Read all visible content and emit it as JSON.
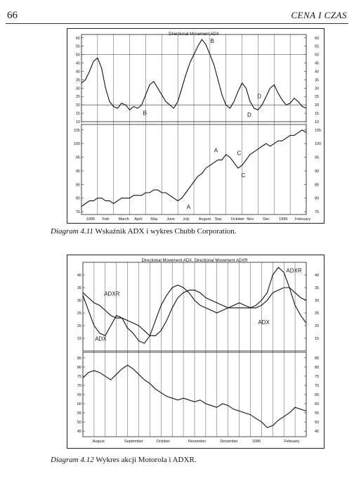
{
  "page": {
    "number": "66",
    "running_head": "CENA I CZAS"
  },
  "figures": [
    {
      "caption_number": "Diagram 4.11",
      "caption_text": "Wskaźnik ADX i wykres Chubb Corporation.",
      "chart_title": "Directional Movement ADX",
      "chart_data": {
        "type": "line",
        "panels": [
          {
            "name": "",
            "y_ticks_left": [
              "60",
              "55",
              "50",
              "45",
              "40",
              "35",
              "30",
              "25",
              "20",
              "15",
              "10"
            ],
            "y_ticks_right": [
              "60",
              "55",
              "50",
              "45",
              "40",
              "35",
              "30",
              "25",
              "20",
              "15",
              "10"
            ],
            "ylim": [
              10,
              62
            ],
            "reference_lines": [
              50,
              20
            ],
            "series": [
              {
                "name": "ADX",
                "values": [
                  33,
                  35,
                  40,
                  46,
                  48,
                  42,
                  30,
                  22,
                  19,
                  18,
                  21,
                  20,
                  17,
                  19,
                  18,
                  20,
                  26,
                  32,
                  34,
                  30,
                  26,
                  22,
                  20,
                  18,
                  22,
                  30,
                  38,
                  45,
                  50,
                  55,
                  59,
                  56,
                  50,
                  44,
                  35,
                  26,
                  20,
                  18,
                  22,
                  28,
                  33,
                  30,
                  22,
                  18,
                  17,
                  20,
                  25,
                  30,
                  32,
                  27,
                  23,
                  20,
                  21,
                  24,
                  22,
                  19,
                  18
                ]
              }
            ],
            "annotations": [
              {
                "text": "B",
                "x": 15.8,
                "y": 14
              },
              {
                "text": "B",
                "x": 32.6,
                "y": 57
              },
              {
                "text": "D",
                "x": 41.8,
                "y": 13
              },
              {
                "text": "D",
                "x": 44.3,
                "y": 24
              }
            ]
          },
          {
            "name": "",
            "y_ticks_left": [
              "105",
              "100",
              "95",
              "90",
              "85",
              "80",
              "75"
            ],
            "y_ticks_right": [
              "105",
              "100",
              "95",
              "90",
              "85",
              "80",
              "75"
            ],
            "ylim": [
              74,
              107
            ],
            "series": [
              {
                "name": "Chubb",
                "values": [
                  77,
                  78,
                  79,
                  79,
                  80,
                  80,
                  79,
                  79,
                  78,
                  79,
                  80,
                  80,
                  80,
                  81,
                  81,
                  81,
                  82,
                  82,
                  83,
                  83,
                  82,
                  82,
                  81,
                  80,
                  79,
                  80,
                  82,
                  84,
                  86,
                  88,
                  89,
                  91,
                  92,
                  93,
                  94,
                  94,
                  96,
                  95,
                  93,
                  91,
                  92,
                  94,
                  96,
                  97,
                  98,
                  99,
                  100,
                  99,
                  100,
                  101,
                  101,
                  102,
                  103,
                  103,
                  104,
                  105,
                  104
                ]
              }
            ],
            "annotations": [
              {
                "text": "A",
                "x": 26.7,
                "y": 76
              },
              {
                "text": "A",
                "x": 33.5,
                "y": 96.8
              },
              {
                "text": "C",
                "x": 39.3,
                "y": 95.8
              },
              {
                "text": "C",
                "x": 40.3,
                "y": 87.6
              }
            ]
          }
        ],
        "x_labels": [
          "1995",
          "Feb",
          "March",
          "April",
          "May",
          "June",
          "July",
          "August",
          "Sep",
          "October",
          "Nov",
          "Dec",
          "1996",
          "February"
        ],
        "x_count": 57
      }
    },
    {
      "caption_number": "Diagram 4.12",
      "caption_text": "Wykres akcji Motorola i ADXR.",
      "chart_title": "Directional Movement ADX, Directional Movement ADXR",
      "chart_data": {
        "type": "line",
        "panels": [
          {
            "name": "",
            "y_ticks_left": [
              "40",
              "35",
              "30",
              "25",
              "20",
              "15"
            ],
            "y_ticks_right": [
              "40",
              "35",
              "30",
              "25",
              "20",
              "15"
            ],
            "ylim": [
              10,
              45
            ],
            "series": [
              {
                "name": "ADX",
                "values": [
                  32,
                  26,
                  20,
                  17,
                  16,
                  20,
                  24,
                  23,
                  19,
                  17,
                  14,
                  13,
                  16,
                  22,
                  28,
                  32,
                  35,
                  36,
                  35,
                  33,
                  30,
                  28,
                  27,
                  26,
                  25,
                  26,
                  27,
                  28,
                  29,
                  28,
                  27,
                  28,
                  30,
                  33,
                  40,
                  43,
                  41,
                  35,
                  28,
                  24,
                  21
                ]
              },
              {
                "name": "ADXR",
                "values": [
                  33,
                  31,
                  29,
                  28,
                  26,
                  24,
                  23,
                  23,
                  22,
                  21,
                  20,
                  18,
                  16,
                  16,
                  18,
                  22,
                  27,
                  31,
                  33,
                  34,
                  34,
                  33,
                  31,
                  30,
                  29,
                  28,
                  27,
                  27,
                  27,
                  27,
                  27,
                  27,
                  28,
                  30,
                  33,
                  34,
                  35,
                  35,
                  33,
                  31,
                  30
                ]
              }
            ],
            "annotations": [
              {
                "text": "ADXR",
                "x": 5.2,
                "y": 31.8
              },
              {
                "text": "ADX",
                "x": 3.2,
                "y": 14
              },
              {
                "text": "ADXR",
                "x": 37.8,
                "y": 41
              },
              {
                "text": "ADX",
                "x": 32.4,
                "y": 20.6
              }
            ]
          },
          {
            "name": "",
            "y_ticks_left": [
              "85",
              "80",
              "75",
              "70",
              "65",
              "60",
              "55",
              "50",
              "45"
            ],
            "y_ticks_right": [
              "85",
              "80",
              "75",
              "70",
              "65",
              "60",
              "55",
              "50",
              "45"
            ],
            "ylim": [
              42,
              88
            ],
            "series": [
              {
                "name": "Motorola",
                "values": [
                  74,
                  77,
                  78,
                  77,
                  75,
                  73,
                  76,
                  79,
                  81,
                  79,
                  76,
                  73,
                  71,
                  68,
                  66,
                  64,
                  63,
                  62,
                  63,
                  62,
                  61,
                  62,
                  60,
                  59,
                  58,
                  60,
                  59,
                  57,
                  56,
                  55,
                  54,
                  52,
                  50,
                  47,
                  48,
                  51,
                  53,
                  55,
                  58,
                  57,
                  56
                ]
              }
            ],
            "annotations": []
          }
        ],
        "x_labels": [
          "August",
          "September",
          "October",
          "November",
          "December",
          "1996",
          "February"
        ],
        "x_count": 41
      }
    }
  ]
}
